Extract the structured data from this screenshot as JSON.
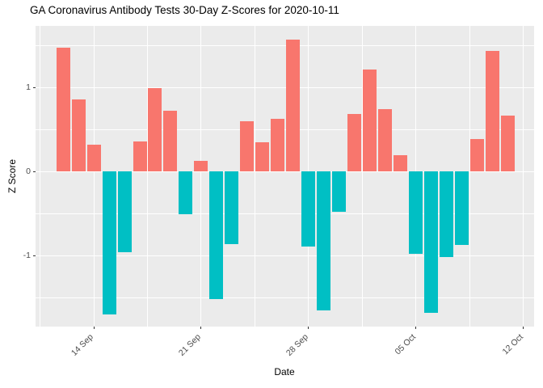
{
  "chart_data": {
    "type": "bar",
    "title": "GA Coronavirus Antibody Tests 30-Day Z-Scores for 2020-10-11",
    "xlabel": "Date",
    "ylabel": "Z Score",
    "dates": [
      "2020-09-12",
      "2020-09-13",
      "2020-09-14",
      "2020-09-15",
      "2020-09-16",
      "2020-09-17",
      "2020-09-18",
      "2020-09-19",
      "2020-09-20",
      "2020-09-21",
      "2020-09-22",
      "2020-09-23",
      "2020-09-24",
      "2020-09-25",
      "2020-09-26",
      "2020-09-27",
      "2020-09-28",
      "2020-09-29",
      "2020-09-30",
      "2020-10-01",
      "2020-10-02",
      "2020-10-03",
      "2020-10-04",
      "2020-10-05",
      "2020-10-06",
      "2020-10-07",
      "2020-10-08",
      "2020-10-09",
      "2020-10-10",
      "2020-10-11"
    ],
    "values": [
      1.47,
      0.86,
      0.32,
      -1.7,
      -0.96,
      0.36,
      0.99,
      0.72,
      -0.51,
      0.13,
      -1.51,
      -0.86,
      0.6,
      0.35,
      0.63,
      1.57,
      -0.89,
      -1.65,
      -0.48,
      0.68,
      1.21,
      0.74,
      0.19,
      -0.98,
      -1.68,
      -1.01,
      -0.87,
      0.39,
      1.43,
      0.66
    ],
    "x_tick_labels": [
      "14 Sep",
      "21 Sep",
      "28 Sep",
      "05 Oct",
      "12 Oct"
    ],
    "x_tick_day_index": [
      2,
      9,
      16,
      23,
      30
    ],
    "x_minor_day_index": [
      -1.5,
      5.5,
      12.5,
      19.5,
      26.5
    ],
    "y_tick_labels": [
      "1",
      "0",
      "-1"
    ],
    "y_ticks": [
      1,
      0,
      -1
    ],
    "y_minor_ticks": [
      1.5,
      0.5,
      -0.5,
      -1.5
    ],
    "ylim": [
      -1.84,
      1.73
    ],
    "grid": true,
    "legend": false,
    "colors": {
      "positive_bar": "#F8766D",
      "negative_bar": "#00BFC4",
      "panel_background": "#EBEBEB",
      "gridline": "#FFFFFF",
      "tick_text": "#4D4D4D",
      "title_text": "#000000"
    }
  }
}
